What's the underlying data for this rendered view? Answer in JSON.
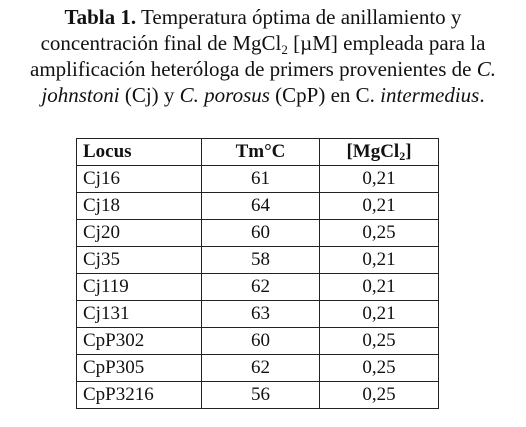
{
  "caption": [
    "Tabla 1.",
    " Temperatura óptima de anillamiento y",
    "concentración final de MgCl",
    "2",
    " [µM] empleada para la",
    "amplificación heteróloga de primers provenientes de ",
    "C.",
    "johnstoni",
    " (Cj) y ",
    "C. porosus",
    " (CpP) en C. ",
    "intermedius",
    "."
  ],
  "table": {
    "header": {
      "locus": "Locus",
      "tm": "Tm°C",
      "mgcl": [
        "[MgCl",
        "2",
        "]"
      ]
    },
    "rows": [
      [
        "Cj16",
        61,
        "0,21"
      ],
      [
        "Cj18",
        64,
        "0,21"
      ],
      [
        "Cj20",
        60,
        "0,25"
      ],
      [
        "Cj35",
        58,
        "0,21"
      ],
      [
        "Cj119",
        62,
        "0,21"
      ],
      [
        "Cj131",
        63,
        "0,21"
      ],
      [
        "CpP302",
        60,
        "0,25"
      ],
      [
        "CpP305",
        62,
        "0,25"
      ],
      [
        "CpP3216",
        56,
        "0,25"
      ]
    ]
  }
}
